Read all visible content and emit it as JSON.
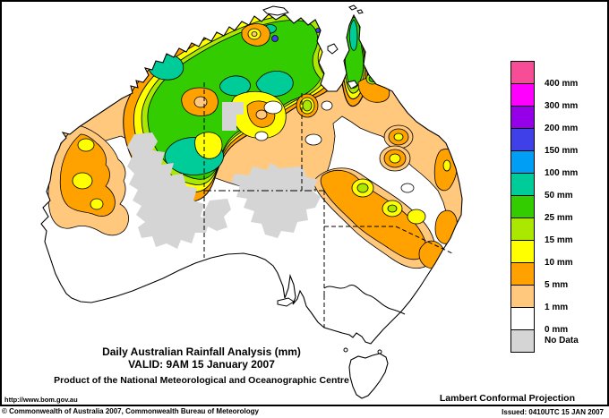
{
  "map": {
    "title_line1": "Daily Australian Rainfall Analysis (mm)",
    "title_line2": "VALID: 9AM 15 January 2007",
    "subtitle": "Product of the National Meteorological and Oceanographic Centre",
    "url": "http://www.bom.gov.au",
    "projection": "Lambert Conformal Projection"
  },
  "legend": {
    "items": [
      {
        "label": "400 mm",
        "color": "#F64D96"
      },
      {
        "label": "300 mm",
        "color": "#FF00FF"
      },
      {
        "label": "200 mm",
        "color": "#9500E8"
      },
      {
        "label": "150 mm",
        "color": "#4040E8"
      },
      {
        "label": "100 mm",
        "color": "#009FF5"
      },
      {
        "label": "50 mm",
        "color": "#00CC99"
      },
      {
        "label": "25 mm",
        "color": "#33CC00"
      },
      {
        "label": "15 mm",
        "color": "#AAE800"
      },
      {
        "label": "10 mm",
        "color": "#FFFF00"
      },
      {
        "label": "5 mm",
        "color": "#FFA200"
      },
      {
        "label": "1 mm",
        "color": "#FFC87D"
      },
      {
        "label": "0 mm",
        "color": "#FFFFFF"
      },
      {
        "label": "No Data",
        "color": "#D5D5D5"
      }
    ]
  },
  "footer": {
    "copyright": "© Commonwealth of Australia 2007, Commonwealth Bureau of Meteorology",
    "issued": "Issued: 0410UTC 15 JAN 2007"
  }
}
